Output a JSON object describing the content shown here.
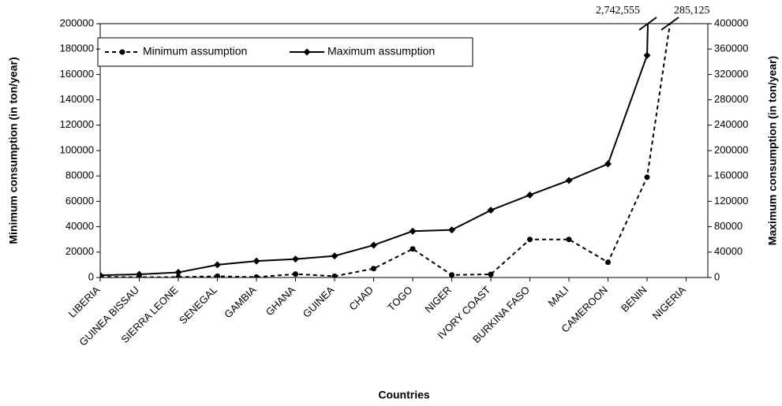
{
  "chart_data": {
    "type": "line",
    "xlabel": "Countries",
    "ylabel": "Minimum consumption (in ton/year)",
    "y2label": "Maximum consumption (in ton/year)",
    "categories": [
      "LIBERIA",
      "GUINEA BISSAU",
      "SIERRA LEONE",
      "SENEGAL",
      "GAMBIA",
      "GHANA",
      "GUINEA",
      "CHAD",
      "TOGO",
      "NIGER",
      "IVORY COAST",
      "BURKINA FASO",
      "MALI",
      "CAMEROON",
      "BENIN",
      "NIGERIA"
    ],
    "series": [
      {
        "name": "Minimum assumption",
        "color": "#000000",
        "line_style": "dashed",
        "marker": "circle",
        "axis": "y",
        "values": [
          500,
          200,
          300,
          1000,
          300,
          2700,
          1000,
          7000,
          22500,
          2000,
          2500,
          30000,
          30000,
          12000,
          79000,
          285125
        ],
        "value_labels": [
          null,
          null,
          null,
          null,
          null,
          null,
          null,
          null,
          null,
          null,
          null,
          null,
          null,
          null,
          null,
          "285,125"
        ]
      },
      {
        "name": "Maximum assumption",
        "color": "#000000",
        "line_style": "solid",
        "marker": "diamond",
        "axis": "y2",
        "values": [
          3500,
          5000,
          8000,
          20000,
          26000,
          29000,
          34000,
          51000,
          73000,
          75000,
          106000,
          130000,
          153000,
          179000,
          350000,
          2742555
        ],
        "value_labels": [
          null,
          null,
          null,
          null,
          null,
          null,
          null,
          null,
          null,
          null,
          null,
          null,
          null,
          null,
          null,
          "2,742,555"
        ]
      }
    ],
    "ylim": [
      0,
      200000
    ],
    "yticks": [
      0,
      20000,
      40000,
      60000,
      80000,
      100000,
      120000,
      140000,
      160000,
      180000,
      200000
    ],
    "y2lim": [
      0,
      400000
    ],
    "y2ticks": [
      0,
      40000,
      80000,
      120000,
      160000,
      200000,
      240000,
      280000,
      320000,
      360000,
      400000
    ],
    "legend": "upper left",
    "grid": false
  }
}
